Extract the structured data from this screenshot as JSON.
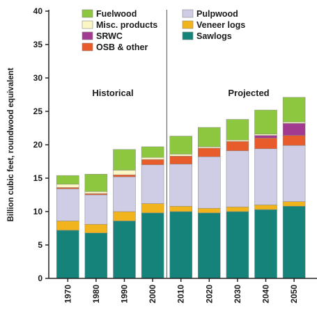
{
  "chart_data": {
    "type": "bar",
    "stacked": true,
    "ylabel": "Billion cubic feet, roundwood equivalent",
    "xlabel": "",
    "ylim": [
      0,
      40
    ],
    "yticks": [
      0,
      5,
      10,
      15,
      20,
      25,
      30,
      35,
      40
    ],
    "grid": false,
    "legend_position": "top",
    "categories": [
      "1970",
      "1980",
      "1990",
      "2000",
      "2010",
      "2020",
      "2030",
      "2040",
      "2050"
    ],
    "series": [
      {
        "name": "Sawlogs",
        "color": "#16837a",
        "values": [
          7.2,
          6.8,
          8.6,
          9.8,
          10.0,
          9.8,
          10.0,
          10.3,
          10.8
        ]
      },
      {
        "name": "Veneer logs",
        "color": "#f2b41c",
        "values": [
          1.4,
          1.3,
          1.4,
          1.4,
          0.8,
          0.7,
          0.7,
          0.7,
          0.7
        ]
      },
      {
        "name": "Pulpwood",
        "color": "#cfcde6",
        "values": [
          4.8,
          4.4,
          5.2,
          5.8,
          6.3,
          7.7,
          8.4,
          8.4,
          8.4
        ]
      },
      {
        "name": "OSB & other",
        "color": "#e85c2c",
        "values": [
          0.2,
          0.2,
          0.3,
          0.8,
          1.2,
          1.3,
          1.4,
          1.6,
          1.5
        ]
      },
      {
        "name": "SRWC",
        "color": "#a23b8f",
        "values": [
          0.0,
          0.0,
          0.0,
          0.0,
          0.0,
          0.0,
          0.0,
          0.4,
          1.8
        ]
      },
      {
        "name": "Misc. products",
        "color": "#fbf7c4",
        "values": [
          0.5,
          0.3,
          0.7,
          0.3,
          0.3,
          0.2,
          0.2,
          0.2,
          0.2
        ]
      },
      {
        "name": "Fuelwood",
        "color": "#8dc63f",
        "values": [
          1.3,
          2.6,
          3.1,
          1.6,
          2.7,
          2.9,
          3.1,
          3.6,
          3.7
        ]
      }
    ],
    "legend": [
      {
        "label": "Fuelwood",
        "color": "#8dc63f"
      },
      {
        "label": "Misc. products",
        "color": "#fbf7c4"
      },
      {
        "label": "SRWC",
        "color": "#a23b8f"
      },
      {
        "label": "OSB & other",
        "color": "#e85c2c"
      },
      {
        "label": "Pulpwood",
        "color": "#cfcde6"
      },
      {
        "label": "Veneer logs",
        "color": "#f2b41c"
      },
      {
        "label": "Sawlogs",
        "color": "#16837a"
      }
    ],
    "annotations": {
      "historical": "Historical",
      "projected": "Projected"
    }
  }
}
